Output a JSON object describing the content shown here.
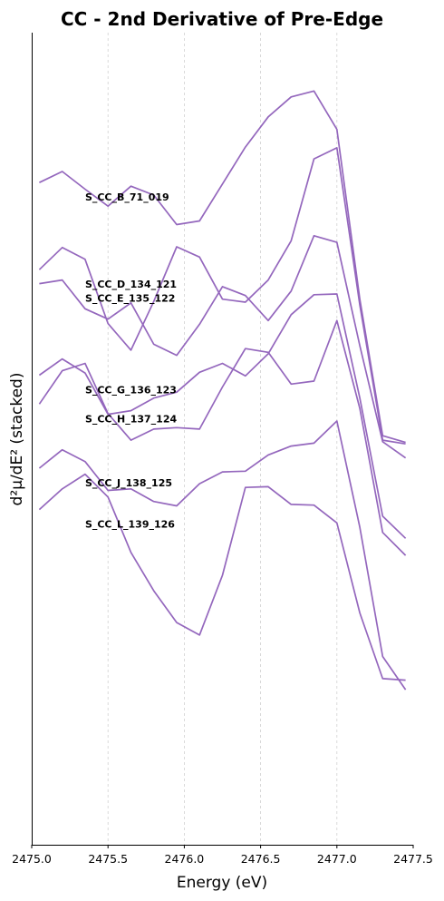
{
  "chart_data": {
    "type": "line",
    "title": "CC - 2nd Derivative of Pre-Edge",
    "xlabel": "Energy (eV)",
    "ylabel": "d²μ/dE² (stacked)",
    "xlim": [
      2475.0,
      2477.5
    ],
    "x_ticks": [
      "2475.0",
      "2475.5",
      "2476.0",
      "2476.5",
      "2477.0",
      "2477.5"
    ],
    "x_tick_values": [
      2475.0,
      2475.5,
      2476.0,
      2476.5,
      2477.0,
      2477.5
    ],
    "y_ticks_visible": false,
    "grid": "vertical dashed at x ticks",
    "line_color": "#9467bd",
    "x": [
      2475.05,
      2475.2,
      2475.35,
      2475.5,
      2475.65,
      2475.8,
      2475.95,
      2476.1,
      2476.25,
      2476.4,
      2476.55,
      2476.7,
      2476.85,
      2477.0,
      2477.15,
      2477.3,
      2477.45
    ],
    "series": [
      {
        "name": "S_CC_B_71_019",
        "values": [
          89.7,
          91.2,
          88.8,
          86.5,
          89.2,
          88.0,
          84.0,
          84.5,
          89.5,
          94.5,
          98.6,
          101.3,
          102.1,
          96.9,
          73.9,
          55.4,
          54.5
        ]
      },
      {
        "name": "S_CC_D_134_121",
        "values": [
          77.9,
          80.9,
          79.3,
          70.6,
          67.0,
          73.6,
          81.0,
          79.6,
          73.9,
          73.5,
          76.5,
          81.8,
          92.9,
          94.4,
          73.1,
          54.8,
          54.3
        ]
      },
      {
        "name": "S_CC_E_135_122",
        "values": [
          76.0,
          76.5,
          72.6,
          71.2,
          73.4,
          67.8,
          66.3,
          70.5,
          75.6,
          74.4,
          71.0,
          75.0,
          82.5,
          81.6,
          67.6,
          54.6,
          52.4
        ]
      },
      {
        "name": "S_CC_G_136_123",
        "values": [
          63.6,
          65.8,
          63.9,
          58.3,
          58.8,
          60.5,
          61.3,
          64.0,
          65.2,
          63.5,
          66.5,
          71.8,
          74.5,
          74.6,
          60.5,
          44.5,
          41.5
        ]
      },
      {
        "name": "S_CC_H_137_124",
        "values": [
          59.7,
          64.2,
          65.2,
          58.4,
          54.8,
          56.3,
          56.5,
          56.3,
          62.0,
          67.2,
          66.7,
          62.4,
          62.8,
          71.0,
          59.1,
          42.3,
          39.2
        ]
      },
      {
        "name": "S_CC_J_138_125",
        "values": [
          51.0,
          53.5,
          51.9,
          48.0,
          48.2,
          46.5,
          45.9,
          48.9,
          50.5,
          50.6,
          52.8,
          54.0,
          54.4,
          57.4,
          43.0,
          25.5,
          21.0
        ]
      },
      {
        "name": "S_CC_L_139_126",
        "values": [
          45.4,
          48.2,
          50.2,
          47.1,
          39.6,
          34.4,
          30.1,
          28.4,
          36.5,
          48.4,
          48.5,
          46.1,
          46.0,
          43.6,
          31.4,
          22.5,
          22.3
        ]
      }
    ]
  }
}
